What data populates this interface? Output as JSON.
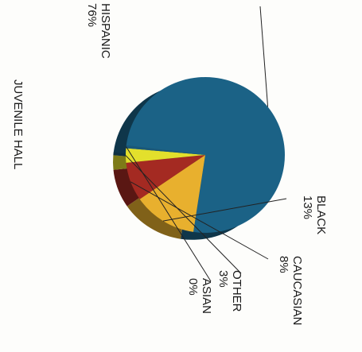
{
  "chart_data": {
    "type": "pie",
    "title": "JUVENILE HALL",
    "slices": [
      {
        "label": "HISPANIC",
        "value": 76,
        "value_label": "76%",
        "color": "#1b6286"
      },
      {
        "label": "BLACK",
        "value": 13,
        "value_label": "13%",
        "color": "#e8b02e"
      },
      {
        "label": "CAUCASIAN",
        "value": 8,
        "value_label": "8%",
        "color": "#a42a22"
      },
      {
        "label": "OTHER",
        "value": 3,
        "value_label": "3%",
        "color": "#e3e02c"
      },
      {
        "label": "ASIAN",
        "value": 0,
        "value_label": "0%",
        "color": "#1a5878"
      }
    ],
    "style": "3d-tilted",
    "orientation": "rotated-90-clockwise"
  }
}
